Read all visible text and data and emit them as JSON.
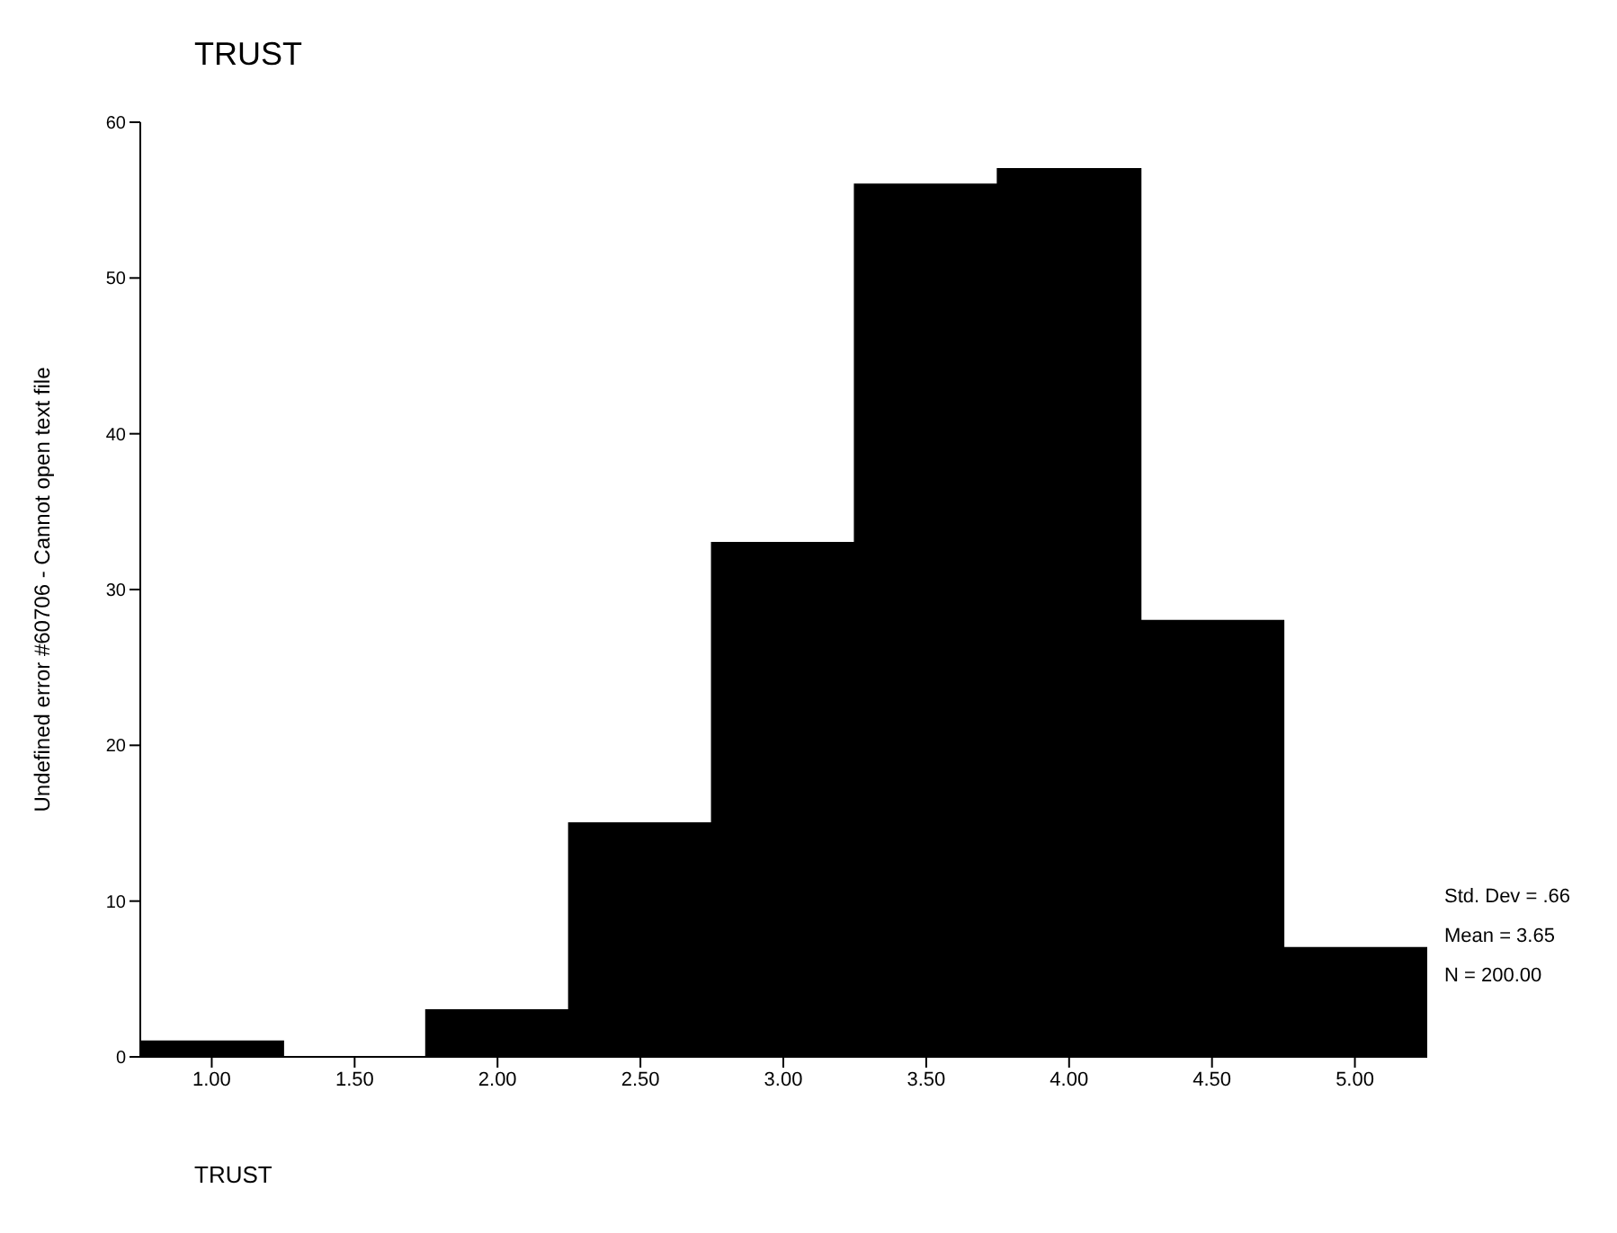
{
  "chart_data": {
    "type": "histogram",
    "title": "TRUST",
    "xlabel": "TRUST",
    "ylabel": "Undefined error #60706 - Cannot open text file",
    "bins": [
      0.75,
      1.25,
      1.75,
      2.25,
      2.75,
      3.25,
      3.75,
      4.25,
      4.75,
      5.25
    ],
    "values": [
      1,
      0,
      3,
      15,
      33,
      56,
      57,
      28,
      7
    ],
    "color": "#000000",
    "xlim": [
      0.75,
      5.25
    ],
    "xticks": [
      {
        "value": 1,
        "label": "1.00"
      },
      {
        "value": 1.5,
        "label": "1.50"
      },
      {
        "value": 2,
        "label": "2.00"
      },
      {
        "value": 2.5,
        "label": "2.50"
      },
      {
        "value": 3,
        "label": "3.00"
      },
      {
        "value": 3.5,
        "label": "3.50"
      },
      {
        "value": 4,
        "label": "4.00"
      },
      {
        "value": 4.5,
        "label": "4.50"
      },
      {
        "value": 5,
        "label": "5.00"
      }
    ],
    "ylim": [
      0,
      60
    ],
    "yticks": [
      0,
      10,
      20,
      30,
      40,
      50,
      60
    ],
    "grid": false,
    "annotations": [
      "Std. Dev = .66",
      "Mean = 3.65",
      "N = 200.00"
    ]
  }
}
